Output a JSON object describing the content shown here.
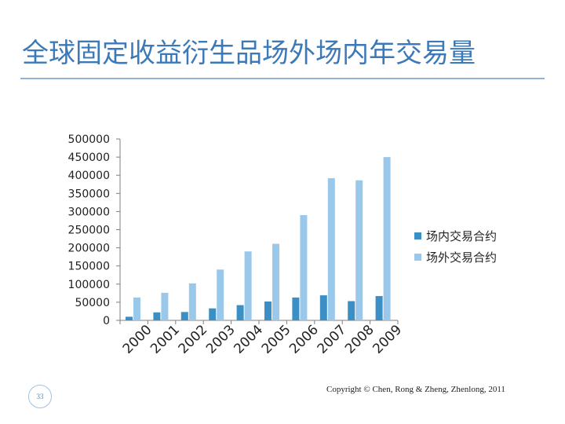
{
  "slide": {
    "title": "全球固定收益衍生品场外场内年交易量",
    "page_number": "33",
    "copyright": "Copyright © Chen, Rong & Zheng, Zhenlong, 2011"
  },
  "colors": {
    "title": "#3c79b9",
    "series_exchange": "#3b8fc4",
    "series_otc": "#9ac8ea"
  },
  "chart_data": {
    "type": "bar",
    "title": "",
    "xlabel": "",
    "ylabel": "",
    "ylim": [
      0,
      500000
    ],
    "yticks": [
      0,
      50000,
      100000,
      150000,
      200000,
      250000,
      300000,
      350000,
      400000,
      450000,
      500000
    ],
    "grid": false,
    "legend_position": "right",
    "categories": [
      "2000",
      "2001",
      "2002",
      "2003",
      "2004",
      "2005",
      "2006",
      "2007",
      "2008",
      "2009"
    ],
    "series": [
      {
        "name": "场内交易合约",
        "values": [
          10000,
          22000,
          23000,
          33000,
          42000,
          52000,
          63000,
          69000,
          53000,
          67000
        ]
      },
      {
        "name": "场外交易合约",
        "values": [
          63000,
          76000,
          102000,
          140000,
          190000,
          211000,
          290000,
          392000,
          386000,
          450000
        ]
      }
    ]
  }
}
